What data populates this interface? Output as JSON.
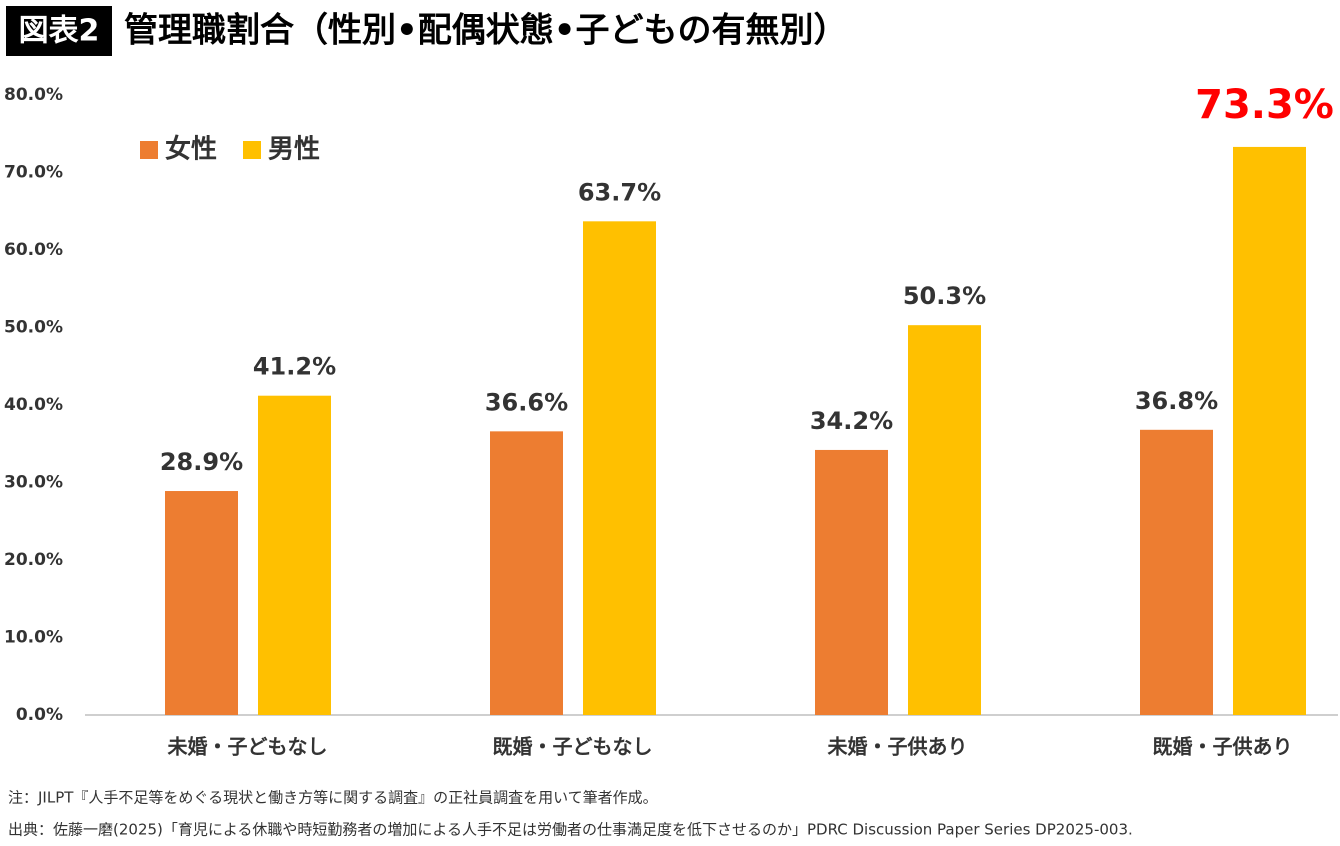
{
  "chart_data": {
    "type": "bar",
    "badge": "図表2",
    "title": "管理職割合（性別•配偶状態•子どもの有無別）",
    "categories": [
      "未婚・子どもなし",
      "既婚・子どもなし",
      "未婚・子供あり",
      "既婚・子供あり"
    ],
    "series": [
      {
        "name": "女性",
        "color": "#ed7d31",
        "values": [
          28.9,
          36.6,
          34.2,
          36.8
        ],
        "value_labels": [
          "28.9%",
          "36.6%",
          "34.2%",
          "36.8%"
        ]
      },
      {
        "name": "男性",
        "color": "#ffc000",
        "values": [
          41.2,
          63.7,
          50.3,
          73.3
        ],
        "value_labels": [
          "41.2%",
          "63.7%",
          "50.3%",
          "73.3%"
        ]
      }
    ],
    "highlight": {
      "series": 1,
      "index": 3,
      "color": "#ff0000"
    },
    "ylim": [
      0,
      80
    ],
    "yticks": [
      {
        "value": 0,
        "label": "0.0%"
      },
      {
        "value": 10,
        "label": "10.0%"
      },
      {
        "value": 20,
        "label": "20.0%"
      },
      {
        "value": 30,
        "label": "30.0%"
      },
      {
        "value": 40,
        "label": "40.0%"
      },
      {
        "value": 50,
        "label": "50.0%"
      },
      {
        "value": 60,
        "label": "60.0%"
      },
      {
        "value": 70,
        "label": "70.0%"
      },
      {
        "value": 80,
        "label": "80.0%"
      }
    ],
    "grid": false,
    "legend": "top-left",
    "notes": [
      "注：JILPT『人手不足等をめぐる現状と働き方等に関する調査』の正社員調査を用いて筆者作成。",
      "出典：佐藤一磨(2025)「育児による休職や時短勤務者の増加による人手不足は労働者の仕事満足度を低下させるのか」PDRC Discussion Paper Series DP2025-003."
    ]
  }
}
